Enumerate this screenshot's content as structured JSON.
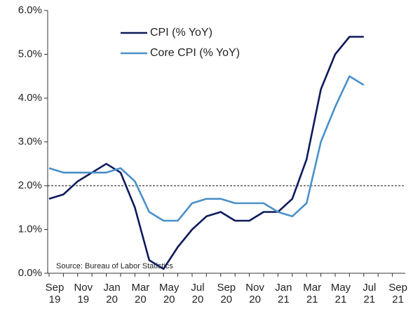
{
  "chart_data": {
    "type": "line",
    "categories": [
      "Sep 19",
      null,
      "Nov 19",
      null,
      "Jan 20",
      null,
      "Mar 20",
      null,
      "May 20",
      null,
      "Jul 20",
      null,
      "Sep 20",
      null,
      "Nov 20",
      null,
      "Jan 21",
      null,
      "Mar 21",
      null,
      "May 21",
      null,
      "Jul 21",
      null,
      "Sep 21"
    ],
    "series": [
      {
        "name": "CPI (% YoY)",
        "color": "#0d1a5c",
        "values": [
          1.7,
          1.8,
          2.1,
          2.3,
          2.5,
          2.3,
          1.5,
          0.3,
          0.1,
          0.6,
          1.0,
          1.3,
          1.4,
          1.2,
          1.2,
          1.4,
          1.4,
          1.7,
          2.6,
          4.2,
          5.0,
          5.4,
          5.4,
          null,
          null
        ]
      },
      {
        "name": "Core CPI (% YoY)",
        "color": "#4a90c8",
        "values": [
          2.4,
          2.3,
          2.3,
          2.3,
          2.3,
          2.4,
          2.1,
          1.4,
          1.2,
          1.2,
          1.6,
          1.7,
          1.7,
          1.6,
          1.6,
          1.6,
          1.4,
          1.3,
          1.6,
          3.0,
          3.8,
          4.5,
          4.3,
          null,
          null
        ]
      }
    ],
    "ylim": [
      0,
      6
    ],
    "yticks": [
      {
        "value": 0,
        "label": "0.0%"
      },
      {
        "value": 1,
        "label": "1.0%"
      },
      {
        "value": 2,
        "label": "2.0%"
      },
      {
        "value": 3,
        "label": "3.0%"
      },
      {
        "value": 4,
        "label": "4.0%"
      },
      {
        "value": 5,
        "label": "5.0%"
      },
      {
        "value": 6,
        "label": "6.0%"
      }
    ],
    "reference_line": 2,
    "annotation": "Source: Bureau of Labor Statistics",
    "legend": "upper left"
  }
}
